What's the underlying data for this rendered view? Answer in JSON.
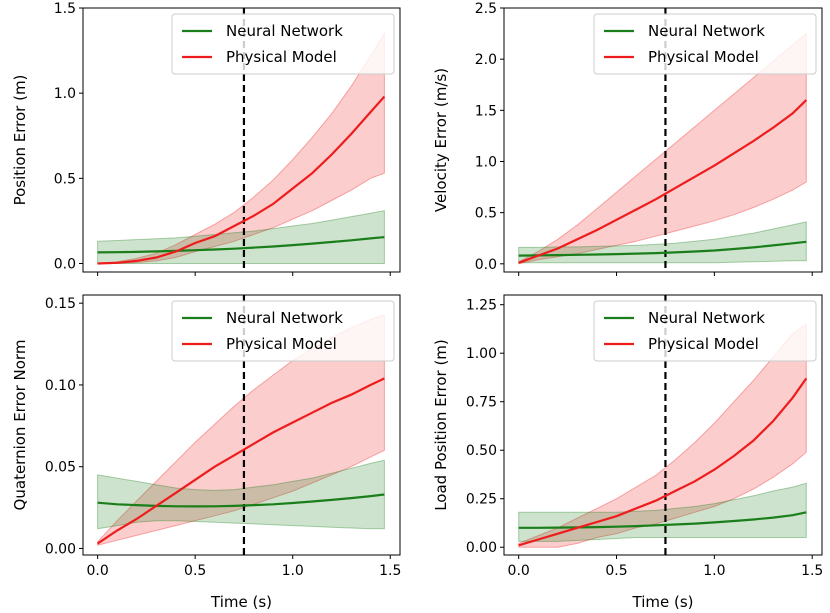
{
  "chart_data": [
    {
      "type": "line",
      "ylabel": "Position Error (m)",
      "xlabel": "",
      "xlim": [
        -0.075,
        1.55
      ],
      "ylim": [
        -0.05,
        1.5
      ],
      "xticks": [
        "0.0",
        "0.5",
        "1.0",
        "1.5"
      ],
      "yticks": [
        "0.0",
        "0.5",
        "1.0",
        "1.5"
      ],
      "show_xticklabels": false,
      "vline_x": 0.75,
      "legend": {
        "position": "top-right",
        "entries": [
          "Neural Network",
          "Physical Model"
        ]
      },
      "x": [
        0,
        0.1,
        0.2,
        0.3,
        0.4,
        0.5,
        0.6,
        0.7,
        0.8,
        0.9,
        1.0,
        1.1,
        1.2,
        1.3,
        1.4,
        1.47
      ],
      "series": [
        {
          "name": "Neural Network",
          "color": "#1a7f1a",
          "values": [
            0.065,
            0.066,
            0.068,
            0.071,
            0.074,
            0.078,
            0.082,
            0.087,
            0.093,
            0.1,
            0.108,
            0.117,
            0.126,
            0.136,
            0.147,
            0.155
          ],
          "lower": [
            0.0,
            0.0,
            0.0,
            0.0,
            0.0,
            0.0,
            0.0,
            0.0,
            0.0,
            0.0,
            0.0,
            0.0,
            0.0,
            0.0,
            0.0,
            0.0
          ],
          "upper": [
            0.13,
            0.135,
            0.14,
            0.145,
            0.15,
            0.16,
            0.17,
            0.18,
            0.19,
            0.205,
            0.22,
            0.235,
            0.255,
            0.275,
            0.295,
            0.31
          ]
        },
        {
          "name": "Physical Model",
          "color": "#ee1c1c",
          "values": [
            0.0,
            0.004,
            0.015,
            0.035,
            0.07,
            0.12,
            0.16,
            0.22,
            0.28,
            0.35,
            0.44,
            0.53,
            0.64,
            0.76,
            0.89,
            0.98
          ],
          "lower": [
            0.0,
            0.0,
            0.005,
            0.015,
            0.035,
            0.07,
            0.1,
            0.13,
            0.17,
            0.21,
            0.26,
            0.31,
            0.37,
            0.43,
            0.5,
            0.53
          ],
          "upper": [
            0.0,
            0.01,
            0.03,
            0.06,
            0.11,
            0.17,
            0.23,
            0.3,
            0.39,
            0.49,
            0.61,
            0.74,
            0.88,
            1.04,
            1.22,
            1.35
          ]
        }
      ]
    },
    {
      "type": "line",
      "ylabel": "Velocity Error (m/s)",
      "xlabel": "",
      "xlim": [
        -0.075,
        1.55
      ],
      "ylim": [
        -0.08,
        2.5
      ],
      "xticks": [
        "0.0",
        "0.5",
        "1.0",
        "1.5"
      ],
      "yticks": [
        "0.0",
        "0.5",
        "1.0",
        "1.5",
        "2.0",
        "2.5"
      ],
      "show_xticklabels": false,
      "vline_x": 0.75,
      "legend": {
        "position": "top-right",
        "entries": [
          "Neural Network",
          "Physical Model"
        ]
      },
      "x": [
        0,
        0.1,
        0.2,
        0.3,
        0.4,
        0.5,
        0.6,
        0.7,
        0.8,
        0.9,
        1.0,
        1.1,
        1.2,
        1.3,
        1.4,
        1.47
      ],
      "series": [
        {
          "name": "Neural Network",
          "color": "#1a7f1a",
          "values": [
            0.08,
            0.082,
            0.085,
            0.088,
            0.091,
            0.095,
            0.1,
            0.105,
            0.112,
            0.12,
            0.13,
            0.145,
            0.16,
            0.18,
            0.2,
            0.215
          ],
          "lower": [
            0.01,
            0.01,
            0.01,
            0.01,
            0.01,
            0.01,
            0.01,
            0.01,
            0.01,
            0.01,
            0.01,
            0.015,
            0.02,
            0.025,
            0.03,
            0.03
          ],
          "upper": [
            0.16,
            0.16,
            0.165,
            0.165,
            0.17,
            0.175,
            0.18,
            0.19,
            0.2,
            0.22,
            0.24,
            0.27,
            0.3,
            0.34,
            0.38,
            0.41
          ]
        },
        {
          "name": "Physical Model",
          "color": "#ee1c1c",
          "values": [
            0.01,
            0.08,
            0.15,
            0.24,
            0.33,
            0.43,
            0.53,
            0.63,
            0.74,
            0.85,
            0.96,
            1.08,
            1.2,
            1.33,
            1.47,
            1.6
          ],
          "lower": [
            0.0,
            0.04,
            0.07,
            0.1,
            0.14,
            0.18,
            0.22,
            0.27,
            0.32,
            0.37,
            0.42,
            0.48,
            0.55,
            0.63,
            0.72,
            0.8
          ],
          "upper": [
            0.02,
            0.12,
            0.24,
            0.38,
            0.54,
            0.7,
            0.86,
            1.02,
            1.18,
            1.34,
            1.5,
            1.66,
            1.82,
            1.98,
            2.14,
            2.25
          ]
        }
      ]
    },
    {
      "type": "line",
      "ylabel": "Quaternion Error Norm",
      "xlabel": "Time (s)",
      "xlim": [
        -0.075,
        1.55
      ],
      "ylim": [
        -0.004,
        0.155
      ],
      "xticks": [
        "0.0",
        "0.5",
        "1.0",
        "1.5"
      ],
      "yticks": [
        "0.00",
        "0.05",
        "0.10",
        "0.15"
      ],
      "show_xticklabels": true,
      "vline_x": 0.75,
      "legend": {
        "position": "top-right",
        "entries": [
          "Neural Network",
          "Physical Model"
        ]
      },
      "x": [
        0,
        0.1,
        0.2,
        0.3,
        0.4,
        0.5,
        0.6,
        0.7,
        0.8,
        0.9,
        1.0,
        1.1,
        1.2,
        1.3,
        1.4,
        1.47
      ],
      "series": [
        {
          "name": "Neural Network",
          "color": "#1a7f1a",
          "values": [
            0.028,
            0.027,
            0.0265,
            0.026,
            0.0258,
            0.0257,
            0.0258,
            0.026,
            0.0265,
            0.027,
            0.0278,
            0.0287,
            0.0297,
            0.0308,
            0.032,
            0.033
          ],
          "lower": [
            0.012,
            0.014,
            0.016,
            0.017,
            0.017,
            0.0165,
            0.016,
            0.0155,
            0.015,
            0.0145,
            0.014,
            0.0135,
            0.013,
            0.0125,
            0.012,
            0.012
          ],
          "upper": [
            0.045,
            0.043,
            0.041,
            0.039,
            0.037,
            0.036,
            0.0355,
            0.036,
            0.0375,
            0.039,
            0.041,
            0.043,
            0.046,
            0.049,
            0.052,
            0.054
          ]
        },
        {
          "name": "Physical Model",
          "color": "#ee1c1c",
          "values": [
            0.003,
            0.011,
            0.018,
            0.026,
            0.034,
            0.042,
            0.05,
            0.057,
            0.064,
            0.071,
            0.077,
            0.083,
            0.089,
            0.094,
            0.1,
            0.104
          ],
          "lower": [
            0.002,
            0.005,
            0.008,
            0.011,
            0.014,
            0.017,
            0.02,
            0.023,
            0.027,
            0.031,
            0.035,
            0.04,
            0.045,
            0.05,
            0.056,
            0.06
          ],
          "upper": [
            0.004,
            0.017,
            0.029,
            0.041,
            0.053,
            0.065,
            0.076,
            0.087,
            0.097,
            0.106,
            0.115,
            0.122,
            0.129,
            0.135,
            0.14,
            0.143
          ]
        }
      ]
    },
    {
      "type": "line",
      "ylabel": "Load Position Error (m)",
      "xlabel": "Time (s)",
      "xlim": [
        -0.075,
        1.55
      ],
      "ylim": [
        -0.04,
        1.3
      ],
      "xticks": [
        "0.0",
        "0.5",
        "1.0",
        "1.5"
      ],
      "yticks": [
        "0.00",
        "0.25",
        "0.50",
        "0.75",
        "1.00",
        "1.25"
      ],
      "show_xticklabels": true,
      "vline_x": 0.75,
      "legend": {
        "position": "top-right",
        "entries": [
          "Neural Network",
          "Physical Model"
        ]
      },
      "x": [
        0,
        0.1,
        0.2,
        0.3,
        0.4,
        0.5,
        0.6,
        0.7,
        0.8,
        0.9,
        1.0,
        1.1,
        1.2,
        1.3,
        1.4,
        1.47
      ],
      "series": [
        {
          "name": "Neural Network",
          "color": "#1a7f1a",
          "values": [
            0.1,
            0.1,
            0.101,
            0.102,
            0.104,
            0.106,
            0.109,
            0.113,
            0.117,
            0.122,
            0.128,
            0.135,
            0.143,
            0.153,
            0.165,
            0.18
          ],
          "lower": [
            0.03,
            0.03,
            0.03,
            0.035,
            0.04,
            0.045,
            0.05,
            0.05,
            0.05,
            0.05,
            0.05,
            0.05,
            0.05,
            0.05,
            0.05,
            0.05
          ],
          "upper": [
            0.18,
            0.18,
            0.18,
            0.18,
            0.18,
            0.18,
            0.185,
            0.19,
            0.2,
            0.21,
            0.225,
            0.245,
            0.265,
            0.29,
            0.31,
            0.33
          ]
        },
        {
          "name": "Physical Model",
          "color": "#ee1c1c",
          "values": [
            0.01,
            0.04,
            0.07,
            0.1,
            0.13,
            0.16,
            0.2,
            0.24,
            0.29,
            0.34,
            0.4,
            0.47,
            0.55,
            0.65,
            0.77,
            0.87
          ],
          "lower": [
            0.0,
            0.0,
            0.0,
            0.02,
            0.05,
            0.07,
            0.1,
            0.12,
            0.15,
            0.18,
            0.21,
            0.25,
            0.3,
            0.36,
            0.43,
            0.49
          ],
          "upper": [
            0.02,
            0.06,
            0.1,
            0.15,
            0.2,
            0.25,
            0.31,
            0.37,
            0.45,
            0.54,
            0.64,
            0.75,
            0.86,
            0.98,
            1.1,
            1.15
          ]
        }
      ]
    }
  ]
}
